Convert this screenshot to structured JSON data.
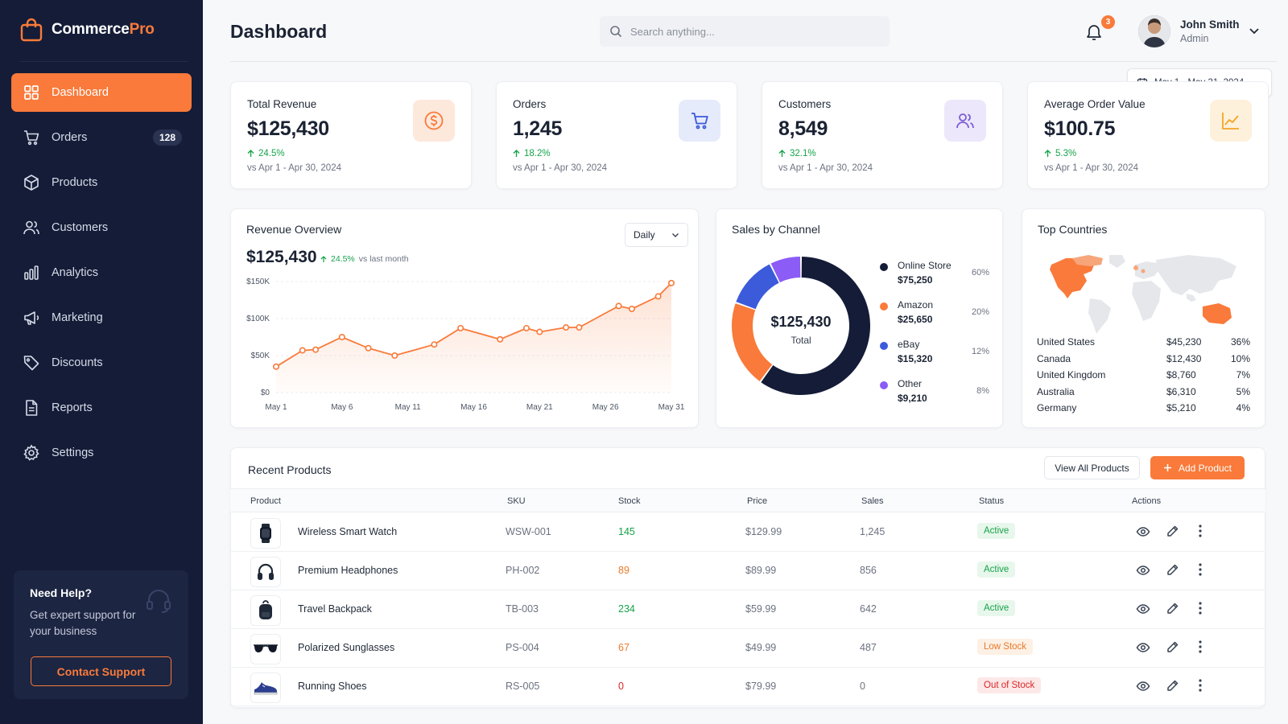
{
  "app": {
    "brand_main": "Commerce",
    "brand_accent": "Pro",
    "accent_color": "#f97a3a",
    "sidebar_color": "#141c38"
  },
  "sidebar": {
    "items": [
      {
        "label": "Dashboard",
        "icon": "grid-icon",
        "active": true
      },
      {
        "label": "Orders",
        "icon": "cart-icon",
        "badge": "128"
      },
      {
        "label": "Products",
        "icon": "box-icon"
      },
      {
        "label": "Customers",
        "icon": "users-icon"
      },
      {
        "label": "Analytics",
        "icon": "bar-chart-icon"
      },
      {
        "label": "Marketing",
        "icon": "megaphone-icon"
      },
      {
        "label": "Discounts",
        "icon": "tag-icon"
      },
      {
        "label": "Reports",
        "icon": "document-icon"
      },
      {
        "label": "Settings",
        "icon": "gear-icon"
      }
    ],
    "help": {
      "title": "Need Help?",
      "text": "Get expert support for your business",
      "button": "Contact Support",
      "icon": "headset-icon"
    }
  },
  "header": {
    "title": "Dashboard",
    "search_placeholder": "Search anything...",
    "notifications_count": "3",
    "user_name": "John Smith",
    "user_role": "Admin",
    "date_range": "May 1 - May 31, 2024"
  },
  "kpis": [
    {
      "label": "Total Revenue",
      "value": "$125,430",
      "delta": "24.5%",
      "compare": "vs Apr 1 - Apr 30, 2024",
      "icon": "dollar-icon",
      "color": "#f97a3a"
    },
    {
      "label": "Orders",
      "value": "1,245",
      "delta": "18.2%",
      "compare": "vs Apr 1 - Apr 30, 2024",
      "icon": "cart-icon",
      "color": "#3b5bdb"
    },
    {
      "label": "Customers",
      "value": "8,549",
      "delta": "32.1%",
      "compare": "vs Apr 1 - Apr 30, 2024",
      "icon": "users-icon",
      "color": "#7c5cd6"
    },
    {
      "label": "Average Order Value",
      "value": "$100.75",
      "delta": "5.3%",
      "compare": "vs Apr 1 - Apr 30, 2024",
      "icon": "trend-icon",
      "color": "#f5a524"
    }
  ],
  "revenue": {
    "title": "Revenue Overview",
    "value": "$125,430",
    "delta": "24.5%",
    "delta_suffix": "vs last month",
    "period": "Daily"
  },
  "chart_data": [
    {
      "type": "area",
      "x": [
        "May 1",
        "May 3",
        "May 4",
        "May 6",
        "May 8",
        "May 10",
        "May 13",
        "May 15",
        "May 18",
        "May 20",
        "May 21",
        "May 23",
        "May 24",
        "May 27",
        "May 28",
        "May 30",
        "May 31"
      ],
      "values": [
        35,
        57,
        58,
        75,
        60,
        50,
        65,
        87,
        72,
        87,
        82,
        88,
        88,
        117,
        113,
        130,
        148
      ],
      "xticks": [
        "May 1",
        "May 6",
        "May 11",
        "May 16",
        "May 21",
        "May 26",
        "May 31"
      ],
      "yticks": [
        "$0",
        "$50K",
        "$100K",
        "$150K"
      ],
      "ylim": [
        0,
        150
      ],
      "y_unit": "$K",
      "color": "#f97a3a",
      "grid": true
    },
    {
      "type": "pie",
      "title": "Sales by Channel",
      "center_value": "$125,430",
      "center_label": "Total",
      "series": [
        {
          "name": "Online Store",
          "value": "$75,250",
          "amount": 75250,
          "pct": "60%",
          "color": "#141c38"
        },
        {
          "name": "Amazon",
          "value": "$25,650",
          "amount": 25650,
          "pct": "20%",
          "color": "#f97a3a"
        },
        {
          "name": "eBay",
          "value": "$15,320",
          "amount": 15320,
          "pct": "12%",
          "color": "#3b5bdb"
        },
        {
          "name": "Other",
          "value": "$9,210",
          "amount": 9210,
          "pct": "8%",
          "color": "#8b5cf6"
        }
      ]
    }
  ],
  "countries": {
    "title": "Top Countries",
    "rows": [
      {
        "name": "United States",
        "value": "$45,230",
        "pct": "36%"
      },
      {
        "name": "Canada",
        "value": "$12,430",
        "pct": "10%"
      },
      {
        "name": "United Kingdom",
        "value": "$8,760",
        "pct": "7%"
      },
      {
        "name": "Australia",
        "value": "$6,310",
        "pct": "5%"
      },
      {
        "name": "Germany",
        "value": "$5,210",
        "pct": "4%"
      }
    ]
  },
  "products": {
    "title": "Recent Products",
    "view_all": "View All Products",
    "add": "Add Product",
    "columns": [
      "Product",
      "SKU",
      "Stock",
      "Price",
      "Sales",
      "Status",
      "Actions"
    ],
    "rows": [
      {
        "name": "Wireless Smart Watch",
        "sku": "WSW-001",
        "stock": "145",
        "stock_color": "#16a34a",
        "price": "$129.99",
        "sales": "1,245",
        "status": "Active",
        "status_kind": "active",
        "thumb": "watch-icon"
      },
      {
        "name": "Premium Headphones",
        "sku": "PH-002",
        "stock": "89",
        "stock_color": "#ea7a2b",
        "price": "$89.99",
        "sales": "856",
        "status": "Active",
        "status_kind": "active",
        "thumb": "headphones-icon"
      },
      {
        "name": "Travel Backpack",
        "sku": "TB-003",
        "stock": "234",
        "stock_color": "#16a34a",
        "price": "$59.99",
        "sales": "642",
        "status": "Active",
        "status_kind": "active",
        "thumb": "backpack-icon"
      },
      {
        "name": "Polarized Sunglasses",
        "sku": "PS-004",
        "stock": "67",
        "stock_color": "#ea7a2b",
        "price": "$49.99",
        "sales": "487",
        "status": "Low Stock",
        "status_kind": "low",
        "thumb": "sunglasses-icon"
      },
      {
        "name": "Running Shoes",
        "sku": "RS-005",
        "stock": "0",
        "stock_color": "#dc2626",
        "price": "$79.99",
        "sales": "0",
        "status": "Out of Stock",
        "status_kind": "out",
        "thumb": "shoe-icon"
      }
    ]
  }
}
